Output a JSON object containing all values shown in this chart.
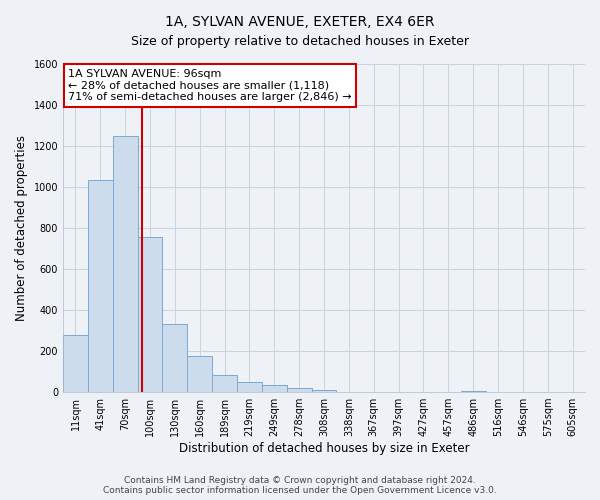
{
  "title": "1A, SYLVAN AVENUE, EXETER, EX4 6ER",
  "subtitle": "Size of property relative to detached houses in Exeter",
  "xlabel": "Distribution of detached houses by size in Exeter",
  "ylabel": "Number of detached properties",
  "bin_labels": [
    "11sqm",
    "41sqm",
    "70sqm",
    "100sqm",
    "130sqm",
    "160sqm",
    "189sqm",
    "219sqm",
    "249sqm",
    "278sqm",
    "308sqm",
    "338sqm",
    "367sqm",
    "397sqm",
    "427sqm",
    "457sqm",
    "486sqm",
    "516sqm",
    "546sqm",
    "575sqm",
    "605sqm"
  ],
  "bar_values": [
    280,
    1035,
    1250,
    755,
    330,
    175,
    85,
    50,
    35,
    20,
    10,
    0,
    0,
    0,
    0,
    0,
    5,
    0,
    0,
    0,
    0
  ],
  "bar_color": "#ccdcec",
  "bar_edge_color": "#7baad0",
  "property_line_color": "#cc0000",
  "property_line_x": 2.67,
  "annotation_text": "1A SYLVAN AVENUE: 96sqm\n← 28% of detached houses are smaller (1,118)\n71% of semi-detached houses are larger (2,846) →",
  "annotation_box_color": "#ffffff",
  "annotation_box_edge_color": "#cc0000",
  "ylim": [
    0,
    1600
  ],
  "yticks": [
    0,
    200,
    400,
    600,
    800,
    1000,
    1200,
    1400,
    1600
  ],
  "footer_text": "Contains HM Land Registry data © Crown copyright and database right 2024.\nContains public sector information licensed under the Open Government Licence v3.0.",
  "background_color": "#eef2f7",
  "plot_background_color": "#eef2f7",
  "grid_color": "#c8d4e0",
  "title_fontsize": 10,
  "subtitle_fontsize": 9,
  "axis_label_fontsize": 8.5,
  "tick_fontsize": 7,
  "annotation_fontsize": 8,
  "footer_fontsize": 6.5
}
